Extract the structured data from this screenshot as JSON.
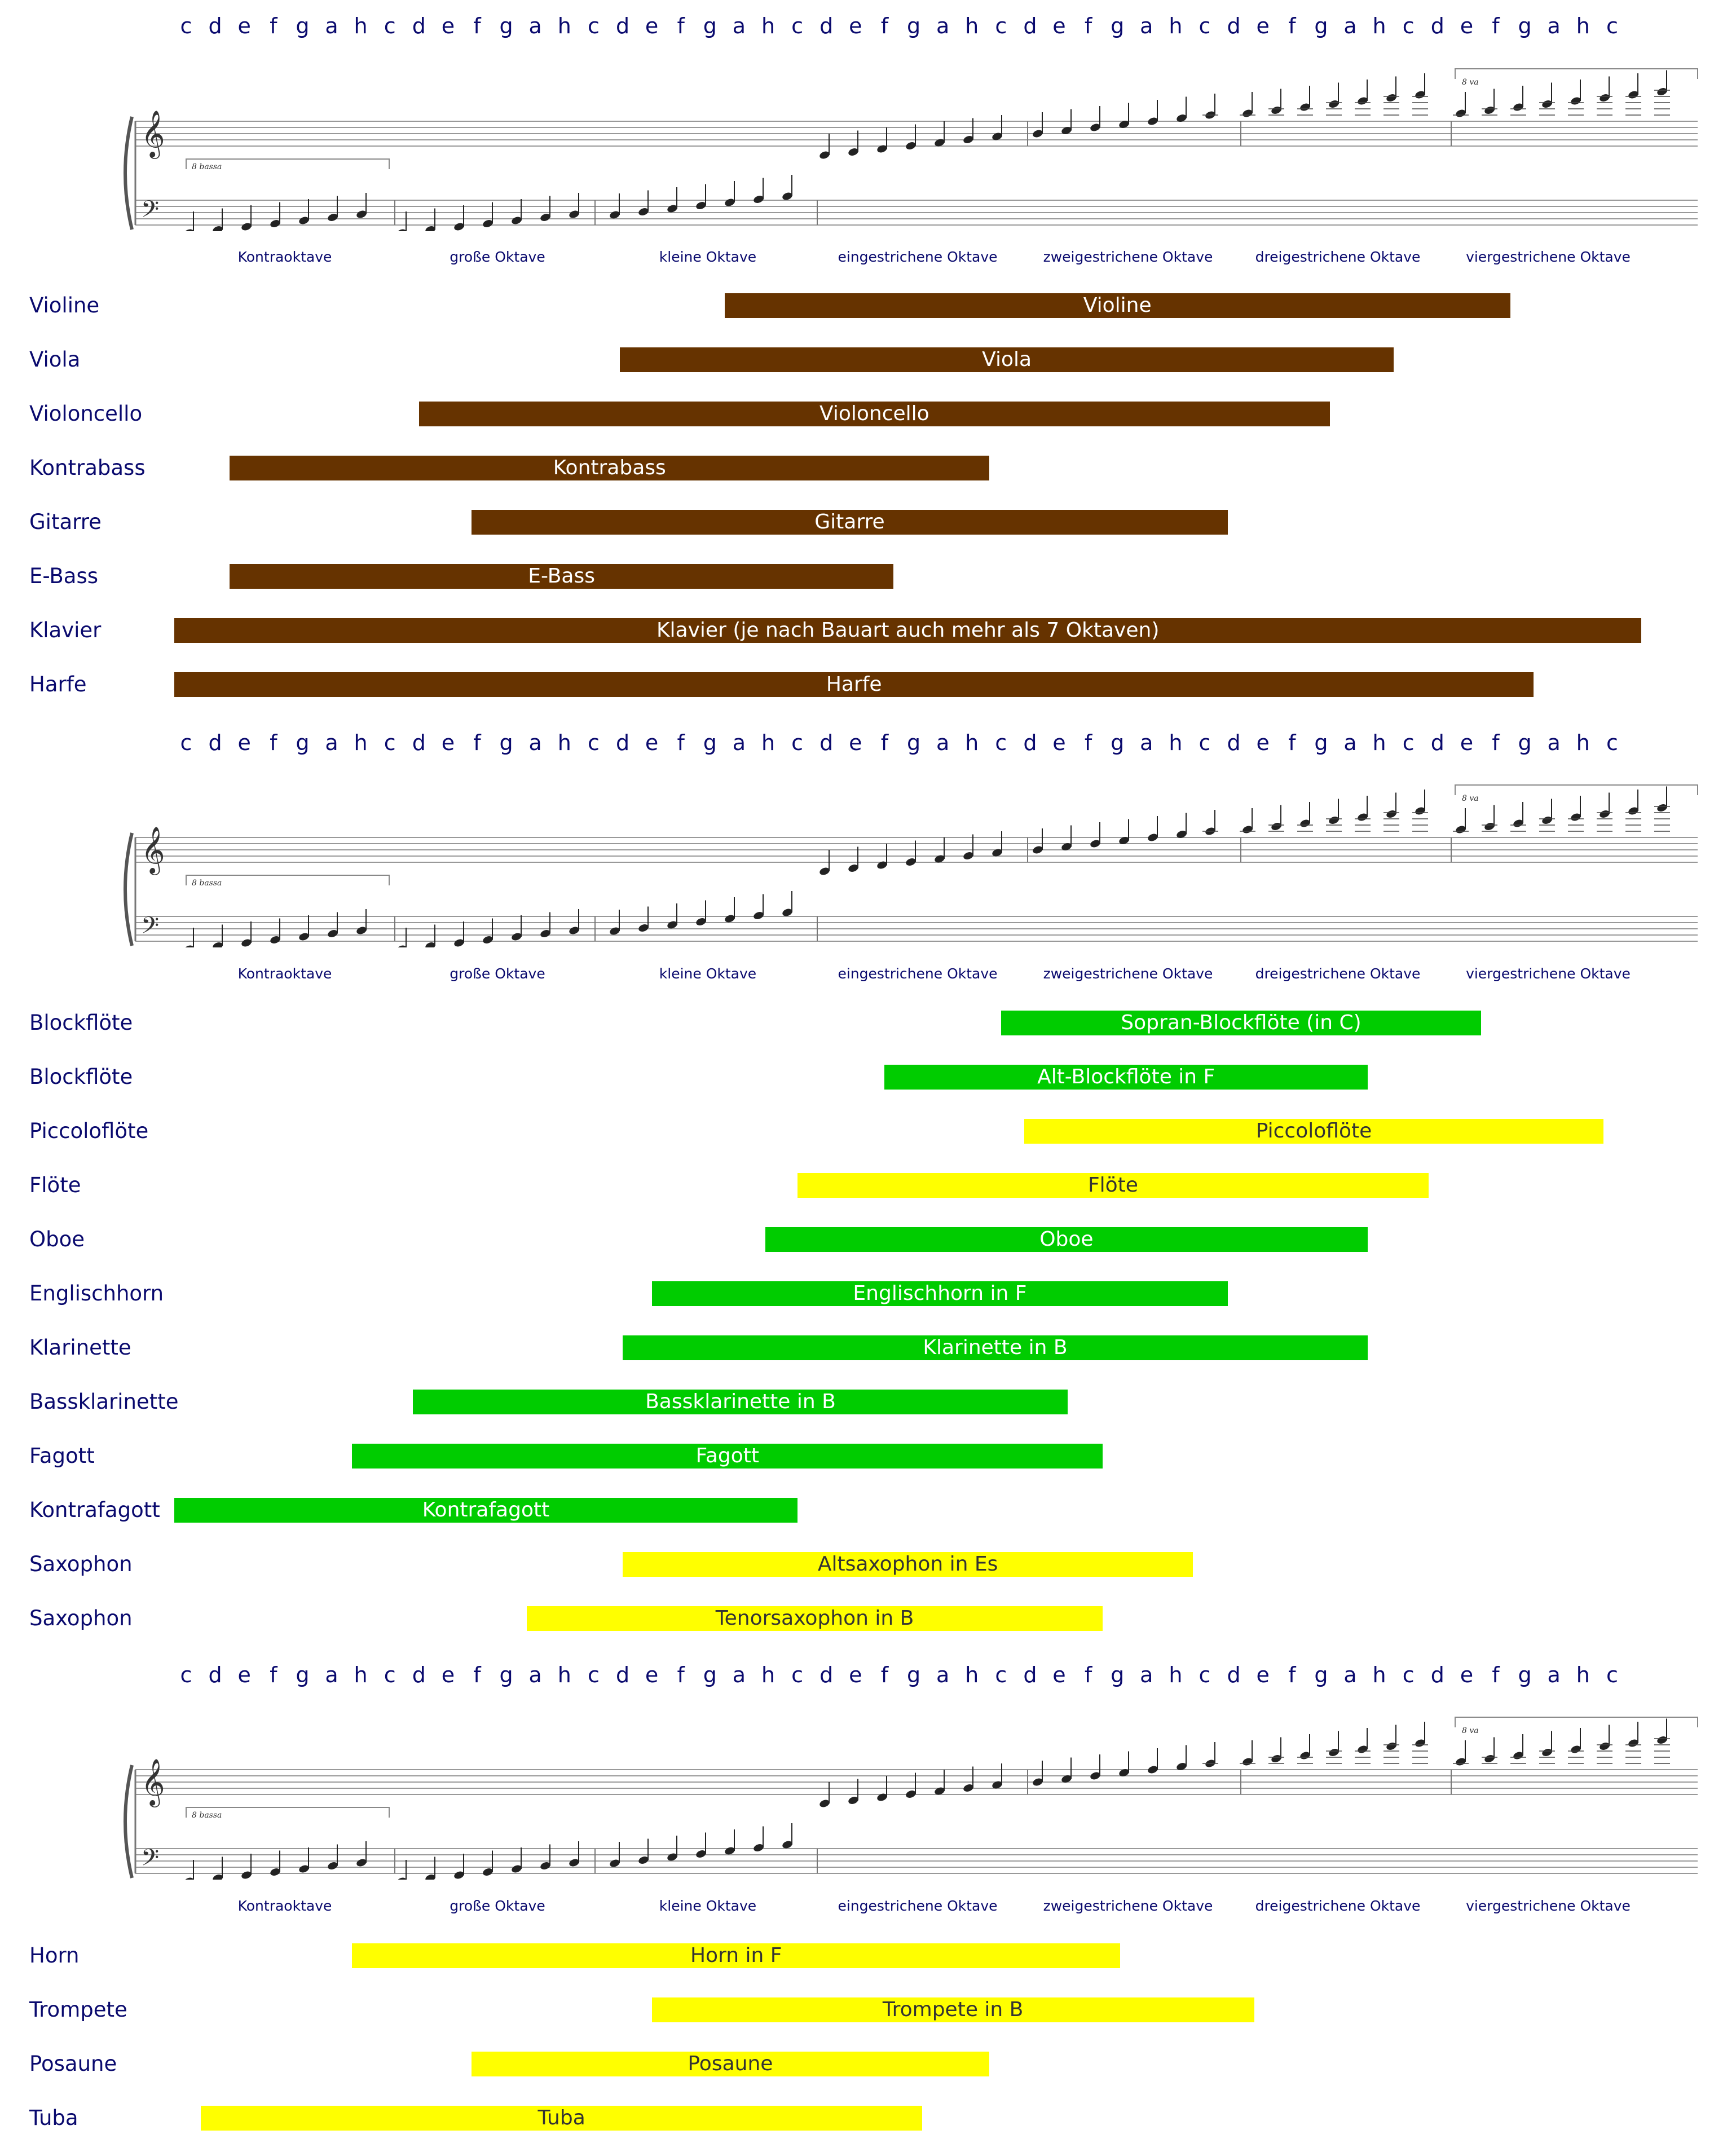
{
  "notes": [
    "c",
    "d",
    "e",
    "f",
    "g",
    "a",
    "h",
    "c",
    "d",
    "e",
    "f",
    "g",
    "a",
    "h",
    "c",
    "d",
    "e",
    "f",
    "g",
    "a",
    "h",
    "c",
    "d",
    "e",
    "f",
    "g",
    "a",
    "h",
    "c",
    "d",
    "e",
    "f",
    "g",
    "a",
    "h",
    "c",
    "d",
    "e",
    "f",
    "g",
    "a",
    "h",
    "c",
    "d",
    "e",
    "f",
    "g",
    "a",
    "h",
    "c"
  ],
  "octaves": [
    "Kontraoktave",
    "große Oktave",
    "kleine Oktave",
    "eingestrichene Oktave",
    "zweigestrichene Oktave",
    "dreigestrichene Oktave",
    "viergestrichene Oktave"
  ],
  "staff_marks": {
    "bassa": "8 bassa",
    "va": "8 va"
  },
  "colors": {
    "strings": "#663300",
    "green": "#00cc00",
    "yellow": "#ffff00",
    "text_dark": "#0a0a6e",
    "bar_text_light": "#ffffff",
    "bar_text_dark": "#333333"
  },
  "chart_data": {
    "type": "range",
    "units": "note index on the c–c note scale (0 = first c, 49 = last c)",
    "sections": [
      {
        "instruments": [
          {
            "name": "Violine",
            "label": "Violine",
            "color": "strings",
            "start": 18.5,
            "end": 45.5
          },
          {
            "name": "Viola",
            "label": "Viola",
            "color": "strings",
            "start": 14.9,
            "end": 41.5
          },
          {
            "name": "Violoncello",
            "label": "Violoncello",
            "color": "strings",
            "start": 8.0,
            "end": 39.3
          },
          {
            "name": "Kontrabass",
            "label": "Kontrabass",
            "color": "strings",
            "start": 1.5,
            "end": 27.6
          },
          {
            "name": "Gitarre",
            "label": "Gitarre",
            "color": "strings",
            "start": 9.8,
            "end": 35.8
          },
          {
            "name": "E-Bass",
            "label": "E-Bass",
            "color": "strings",
            "start": 1.5,
            "end": 24.3
          },
          {
            "name": "Klavier",
            "label": "Klavier (je nach Bauart auch mehr als 7 Oktaven)",
            "color": "strings",
            "start": -0.4,
            "end": 50.0
          },
          {
            "name": "Harfe",
            "label": "Harfe",
            "color": "strings",
            "start": -0.4,
            "end": 46.3
          }
        ]
      },
      {
        "instruments": [
          {
            "name": "Blockflöte",
            "label": "Sopran-Blockflöte (in C)",
            "color": "green",
            "start": 28.0,
            "end": 44.5
          },
          {
            "name": "Blockflöte",
            "label": "Alt-Blockflöte in F",
            "color": "green",
            "start": 24.0,
            "end": 40.6
          },
          {
            "name": "Piccoloflöte",
            "label": "Piccoloflöte",
            "color": "yellow",
            "start": 28.8,
            "end": 48.7
          },
          {
            "name": "Flöte",
            "label": "Flöte",
            "color": "yellow",
            "start": 21.0,
            "end": 42.7
          },
          {
            "name": "Oboe",
            "label": "Oboe",
            "color": "green",
            "start": 19.9,
            "end": 40.6
          },
          {
            "name": "Englischhorn",
            "label": "Englischhorn in F",
            "color": "green",
            "start": 16.0,
            "end": 35.8
          },
          {
            "name": "Klarinette",
            "label": "Klarinette in B",
            "color": "green",
            "start": 15.0,
            "end": 40.6
          },
          {
            "name": "Bassklarinette",
            "label": "Bassklarinette in B",
            "color": "green",
            "start": 7.8,
            "end": 30.3
          },
          {
            "name": "Fagott",
            "label": "Fagott",
            "color": "green",
            "start": 5.7,
            "end": 31.5
          },
          {
            "name": "Kontrafagott",
            "label": "Kontrafagott",
            "color": "green",
            "start": -0.4,
            "end": 21.0
          },
          {
            "name": "Saxophon",
            "label": "Altsaxophon in Es",
            "color": "yellow",
            "start": 15.0,
            "end": 34.6
          },
          {
            "name": "Saxophon",
            "label": "Tenorsaxophon in B",
            "color": "yellow",
            "start": 11.7,
            "end": 31.5
          }
        ]
      },
      {
        "instruments": [
          {
            "name": "Horn",
            "label": "Horn in F",
            "color": "yellow",
            "start": 5.7,
            "end": 32.1
          },
          {
            "name": "Trompete",
            "label": "Trompete in B",
            "color": "yellow",
            "start": 16.0,
            "end": 36.7
          },
          {
            "name": "Posaune",
            "label": "Posaune",
            "color": "yellow",
            "start": 9.8,
            "end": 27.6
          },
          {
            "name": "Tuba",
            "label": "Tuba",
            "color": "yellow",
            "start": 0.5,
            "end": 25.3
          }
        ]
      }
    ]
  }
}
